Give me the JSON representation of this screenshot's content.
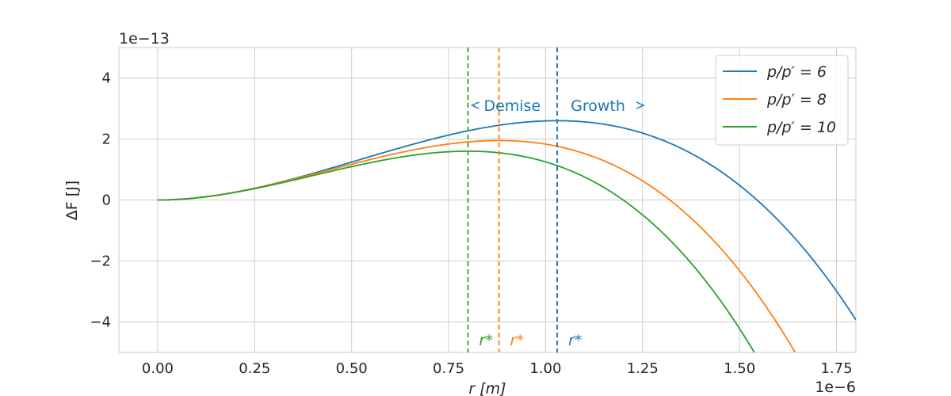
{
  "chart_data": {
    "type": "line",
    "xlabel": "r [m]",
    "ylabel": "ΔF  [J]",
    "x_multiplier": "1e−6",
    "y_multiplier": "1e−13",
    "xlim": [
      -0.1,
      1.8
    ],
    "ylim": [
      -5,
      5
    ],
    "x_ticks": [
      0.0,
      0.25,
      0.5,
      0.75,
      1.0,
      1.25,
      1.5,
      1.75
    ],
    "x_tick_labels": [
      "0.00",
      "0.25",
      "0.50",
      "0.75",
      "1.00",
      "1.25",
      "1.50",
      "1.75"
    ],
    "y_ticks": [
      -4,
      -2,
      0,
      2,
      4
    ],
    "y_tick_labels": [
      "−4",
      "−2",
      "0",
      "2",
      "4"
    ],
    "grid": true,
    "legend_position": "top-right",
    "series": [
      {
        "name": "p/p′ = 6",
        "color": "#1f77b4",
        "r_star": 1.03,
        "peak": 2.6
      },
      {
        "name": "p/p′ = 8",
        "color": "#ff7f0e",
        "r_star": 0.88,
        "peak": 1.95
      },
      {
        "name": "p/p′ = 10",
        "color": "#2ca02c",
        "r_star": 0.8,
        "peak": 1.6
      }
    ],
    "vlines": [
      {
        "x": 1.03,
        "color": "#1f77b4",
        "style": "dashed",
        "label": "r*"
      },
      {
        "x": 0.88,
        "color": "#ff7f0e",
        "style": "dashed",
        "label": "r*"
      },
      {
        "x": 0.8,
        "color": "#2ca02c",
        "style": "dashed",
        "label": "r*"
      }
    ],
    "annotations": [
      {
        "text": "Demise",
        "arrow": "left",
        "color": "#1f77b4"
      },
      {
        "text": "Growth",
        "arrow": "right",
        "color": "#1f77b4"
      }
    ]
  }
}
